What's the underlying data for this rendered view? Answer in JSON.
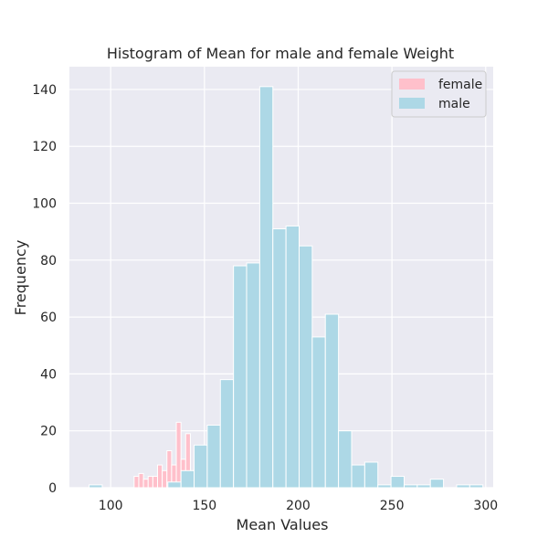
{
  "chart_data": {
    "type": "bar",
    "title": "Histogram of  Mean for male and female Weight",
    "xlabel": "Mean Values",
    "ylabel": "Frequency",
    "xlim": [
      78,
      304
    ],
    "ylim": [
      0,
      148
    ],
    "xticks": [
      100,
      150,
      200,
      250,
      300
    ],
    "yticks": [
      0,
      20,
      40,
      60,
      80,
      100,
      120,
      140
    ],
    "grid": true,
    "legend_position": "top-right",
    "colors": {
      "female": "#ffc0cb",
      "male": "#add8e6",
      "background": "#eaeaf2",
      "grid": "#ffffff"
    },
    "series": [
      {
        "name": "female",
        "bin_width": 2.5,
        "bins": [
          {
            "x0": 112.5,
            "count": 4
          },
          {
            "x0": 115,
            "count": 5
          },
          {
            "x0": 117.5,
            "count": 3
          },
          {
            "x0": 120,
            "count": 4
          },
          {
            "x0": 122.5,
            "count": 4
          },
          {
            "x0": 125,
            "count": 8
          },
          {
            "x0": 127.5,
            "count": 6
          },
          {
            "x0": 130,
            "count": 13
          },
          {
            "x0": 132.5,
            "count": 8
          },
          {
            "x0": 135,
            "count": 23
          },
          {
            "x0": 137.5,
            "count": 10
          },
          {
            "x0": 140,
            "count": 19
          }
        ]
      },
      {
        "name": "male",
        "bin_width": 7,
        "bins": [
          {
            "x0": 88.5,
            "count": 1
          },
          {
            "x0": 95.5,
            "count": 0
          },
          {
            "x0": 102.5,
            "count": 0
          },
          {
            "x0": 109.5,
            "count": 0
          },
          {
            "x0": 116.5,
            "count": 0
          },
          {
            "x0": 123.5,
            "count": 0
          },
          {
            "x0": 130.5,
            "count": 2
          },
          {
            "x0": 137.5,
            "count": 6
          },
          {
            "x0": 144.5,
            "count": 15
          },
          {
            "x0": 151.5,
            "count": 22
          },
          {
            "x0": 158.5,
            "count": 38
          },
          {
            "x0": 165.5,
            "count": 78
          },
          {
            "x0": 172.5,
            "count": 79
          },
          {
            "x0": 179.5,
            "count": 141
          },
          {
            "x0": 186.5,
            "count": 91
          },
          {
            "x0": 193.5,
            "count": 92
          },
          {
            "x0": 200.5,
            "count": 85
          },
          {
            "x0": 207.5,
            "count": 53
          },
          {
            "x0": 214.5,
            "count": 61
          },
          {
            "x0": 221.5,
            "count": 20
          },
          {
            "x0": 228.5,
            "count": 8
          },
          {
            "x0": 235.5,
            "count": 9
          },
          {
            "x0": 242.5,
            "count": 1
          },
          {
            "x0": 249.5,
            "count": 4
          },
          {
            "x0": 256.5,
            "count": 1
          },
          {
            "x0": 263.5,
            "count": 1
          },
          {
            "x0": 270.5,
            "count": 3
          },
          {
            "x0": 277.5,
            "count": 0
          },
          {
            "x0": 284.5,
            "count": 1
          },
          {
            "x0": 291.5,
            "count": 1
          }
        ]
      }
    ]
  }
}
